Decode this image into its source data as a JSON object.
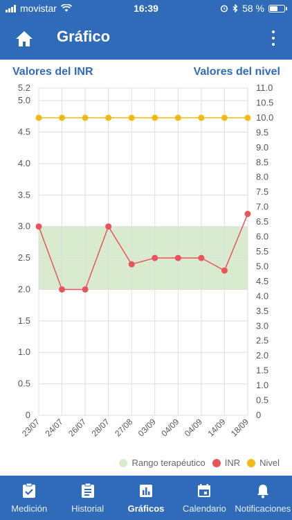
{
  "status_bar": {
    "carrier": "movistar",
    "time": "16:39",
    "battery_percent": "58 %",
    "battery_level": 0.58
  },
  "app_bar": {
    "title": "Gráfico",
    "home_icon": "home-icon",
    "menu_icon": "more-vertical-icon"
  },
  "axis_titles": {
    "left": "Valores del INR",
    "right": "Valores del nivel"
  },
  "chart_data": {
    "type": "line",
    "categories": [
      "23/07",
      "24/07",
      "26/07",
      "28/07",
      "27/08",
      "03/09",
      "04/09",
      "04/09",
      "14/09",
      "18/09"
    ],
    "y_left": {
      "lim": [
        0,
        5.2
      ],
      "ticks": [
        "0",
        "0.5",
        "1.0",
        "1.5",
        "2.0",
        "2.5",
        "3.0",
        "3.5",
        "4.0",
        "4.5",
        "5.0",
        "5.2"
      ],
      "tick_values": [
        0,
        0.5,
        1.0,
        1.5,
        2.0,
        2.5,
        3.0,
        3.5,
        4.0,
        4.5,
        5.0,
        5.2
      ]
    },
    "y_right": {
      "lim": [
        0,
        11.0
      ],
      "ticks": [
        "0",
        "0.5",
        "1.0",
        "1.5",
        "2.0",
        "2.5",
        "3.0",
        "3.5",
        "4.0",
        "4.5",
        "5.0",
        "5.5",
        "6.0",
        "6.5",
        "7.0",
        "7.5",
        "8.0",
        "8.5",
        "9.0",
        "9.5",
        "10.0",
        "10.5",
        "11.0"
      ],
      "tick_values": [
        0,
        0.5,
        1.0,
        1.5,
        2.0,
        2.5,
        3.0,
        3.5,
        4.0,
        4.5,
        5.0,
        5.5,
        6.0,
        6.5,
        7.0,
        7.5,
        8.0,
        8.5,
        9.0,
        9.5,
        10.0,
        10.5,
        11.0
      ]
    },
    "band": {
      "name": "Rango terapéutico",
      "from": 2.0,
      "to": 3.0,
      "color": "#d9ebcf"
    },
    "series": [
      {
        "name": "INR",
        "axis": "left",
        "color": "#e8545a",
        "values": [
          3.0,
          2.0,
          2.0,
          3.0,
          2.4,
          2.5,
          2.5,
          2.5,
          2.3,
          3.2
        ]
      },
      {
        "name": "Nivel",
        "axis": "right",
        "color": "#f5b915",
        "values": [
          10.0,
          10.0,
          10.0,
          10.0,
          10.0,
          10.0,
          10.0,
          10.0,
          10.0,
          10.0
        ]
      }
    ],
    "grid": true,
    "legend_position": "bottom-right"
  },
  "legend": {
    "band_label": "Rango terapéutico",
    "inr_label": "INR",
    "nivel_label": "Nivel",
    "band_color": "#d9ebcf",
    "inr_color": "#e8545a",
    "nivel_color": "#f5b915"
  },
  "tabs": [
    {
      "label": "Medición",
      "icon": "clipboard-check-icon",
      "active": false
    },
    {
      "label": "Historial",
      "icon": "clipboard-list-icon",
      "active": false
    },
    {
      "label": "Gráficos",
      "icon": "bar-chart-icon",
      "active": true
    },
    {
      "label": "Calendario",
      "icon": "calendar-icon",
      "active": false
    },
    {
      "label": "Notificaciones",
      "icon": "bell-icon",
      "active": false
    }
  ],
  "colors": {
    "primary": "#2f6bb8",
    "grid": "#dddddd",
    "axis_text": "#555555"
  }
}
